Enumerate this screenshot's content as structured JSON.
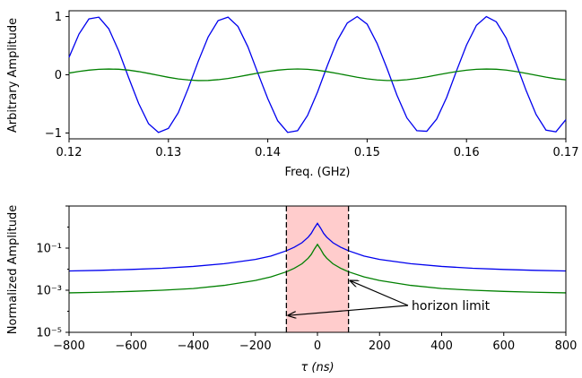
{
  "chart_data": [
    {
      "type": "line",
      "xlabel": "Freq. (GHz)",
      "ylabel": "Arbitrary Amplitude",
      "xlim": [
        0.12,
        0.17
      ],
      "ylim": [
        -1.1,
        1.1
      ],
      "xticks": [
        0.12,
        0.13,
        0.14,
        0.15,
        0.16,
        0.17
      ],
      "xtick_labels": [
        "0.12",
        "0.13",
        "0.14",
        "0.15",
        "0.16",
        "0.17"
      ],
      "yticks": [
        1,
        0,
        -1
      ],
      "ytick_labels": [
        "1",
        "0",
        "−1"
      ],
      "grid": false,
      "series": [
        {
          "color": "#0000ee",
          "x": [
            0.12,
            0.121,
            0.122,
            0.123,
            0.124,
            0.125,
            0.126,
            0.127,
            0.128,
            0.129,
            0.13,
            0.131,
            0.132,
            0.133,
            0.134,
            0.135,
            0.136,
            0.137,
            0.138,
            0.139,
            0.14,
            0.141,
            0.142,
            0.143,
            0.144,
            0.145,
            0.146,
            0.147,
            0.148,
            0.149,
            0.15,
            0.151,
            0.152,
            0.153,
            0.154,
            0.155,
            0.156,
            0.157,
            0.158,
            0.159,
            0.16,
            0.161,
            0.162,
            0.163,
            0.164,
            0.165,
            0.166,
            0.167,
            0.168,
            0.169,
            0.17
          ],
          "values": [
            0.3,
            0.7,
            0.96,
            0.99,
            0.79,
            0.41,
            -0.05,
            -0.49,
            -0.84,
            -0.99,
            -0.92,
            -0.65,
            -0.23,
            0.23,
            0.65,
            0.93,
            0.99,
            0.83,
            0.48,
            0.03,
            -0.41,
            -0.79,
            -0.99,
            -0.96,
            -0.7,
            -0.3,
            0.16,
            0.59,
            0.89,
            1.0,
            0.87,
            0.54,
            0.11,
            -0.35,
            -0.74,
            -0.96,
            -0.97,
            -0.76,
            -0.39,
            0.07,
            0.51,
            0.85,
            1.0,
            0.91,
            0.63,
            0.19,
            -0.27,
            -0.68,
            -0.95,
            -0.98,
            -0.77
          ]
        },
        {
          "color": "#008000",
          "x": [
            0.12,
            0.121,
            0.122,
            0.123,
            0.124,
            0.125,
            0.126,
            0.127,
            0.128,
            0.129,
            0.13,
            0.131,
            0.132,
            0.133,
            0.134,
            0.135,
            0.136,
            0.137,
            0.138,
            0.139,
            0.14,
            0.141,
            0.142,
            0.143,
            0.144,
            0.145,
            0.146,
            0.147,
            0.148,
            0.149,
            0.15,
            0.151,
            0.152,
            0.153,
            0.154,
            0.155,
            0.156,
            0.157,
            0.158,
            0.159,
            0.16,
            0.161,
            0.162,
            0.163,
            0.164,
            0.165,
            0.166,
            0.167,
            0.168,
            0.169,
            0.17
          ],
          "values": [
            0.03,
            0.058,
            0.08,
            0.094,
            0.099,
            0.095,
            0.08,
            0.055,
            0.024,
            -0.01,
            -0.043,
            -0.071,
            -0.089,
            -0.099,
            -0.097,
            -0.084,
            -0.063,
            -0.035,
            -0.003,
            0.029,
            0.058,
            0.08,
            0.094,
            0.1,
            0.094,
            0.078,
            0.053,
            0.023,
            -0.01,
            -0.042,
            -0.069,
            -0.088,
            -0.098,
            -0.097,
            -0.085,
            -0.064,
            -0.036,
            -0.004,
            0.027,
            0.056,
            0.079,
            0.094,
            0.099,
            0.095,
            0.081,
            0.056,
            0.025,
            -0.008,
            -0.04,
            -0.068,
            -0.087
          ]
        }
      ]
    },
    {
      "type": "line",
      "xlabel": "τ (ns)",
      "ylabel": "Normalized Amplitude",
      "xlim": [
        -800,
        800
      ],
      "ylim": [
        1e-05,
        10
      ],
      "yscale": "log",
      "xticks": [
        -800,
        -600,
        -400,
        -200,
        0,
        200,
        400,
        600,
        800
      ],
      "xtick_labels": [
        "−800",
        "−600",
        "−400",
        "−200",
        "0",
        "200",
        "400",
        "600",
        "800"
      ],
      "yticks": [
        0.1,
        0.001,
        1e-05
      ],
      "ytick_labels": [
        "10⁻¹",
        "10⁻³",
        "10⁻⁵"
      ],
      "grid": false,
      "shaded_region": {
        "x": [
          -100,
          100
        ],
        "color": "#ffcccc"
      },
      "vlines": [
        -100,
        100
      ],
      "annotation": {
        "text": "horizon limit",
        "arrow_targets": [
          [
            -100,
            6.31e-05
          ],
          [
            100,
            0.00282
          ]
        ]
      },
      "series": [
        {
          "color": "#0000ee",
          "x": [
            -800,
            -700,
            -600,
            -500,
            -400,
            -300,
            -200,
            -150,
            -100,
            -75,
            -50,
            -30,
            -20,
            -10,
            0,
            10,
            20,
            30,
            50,
            75,
            100,
            150,
            200,
            300,
            400,
            500,
            600,
            700,
            800
          ],
          "values": [
            0.0082,
            0.0088,
            0.0097,
            0.011,
            0.0135,
            0.0182,
            0.029,
            0.042,
            0.075,
            0.11,
            0.18,
            0.33,
            0.5,
            0.9,
            1.5,
            0.9,
            0.5,
            0.33,
            0.18,
            0.11,
            0.075,
            0.042,
            0.029,
            0.0182,
            0.0135,
            0.011,
            0.0097,
            0.0088,
            0.0082
          ]
        },
        {
          "color": "#008000",
          "x": [
            -800,
            -700,
            -600,
            -500,
            -400,
            -300,
            -200,
            -150,
            -100,
            -75,
            -50,
            -30,
            -20,
            -10,
            0,
            10,
            20,
            30,
            50,
            75,
            100,
            150,
            200,
            300,
            400,
            500,
            600,
            700,
            800
          ],
          "values": [
            0.00075,
            0.0008,
            0.00088,
            0.001,
            0.0012,
            0.0017,
            0.0029,
            0.0043,
            0.0075,
            0.011,
            0.018,
            0.033,
            0.05,
            0.09,
            0.15,
            0.09,
            0.05,
            0.033,
            0.018,
            0.011,
            0.0075,
            0.0043,
            0.0029,
            0.0017,
            0.0012,
            0.001,
            0.00088,
            0.0008,
            0.00075
          ]
        }
      ]
    }
  ]
}
